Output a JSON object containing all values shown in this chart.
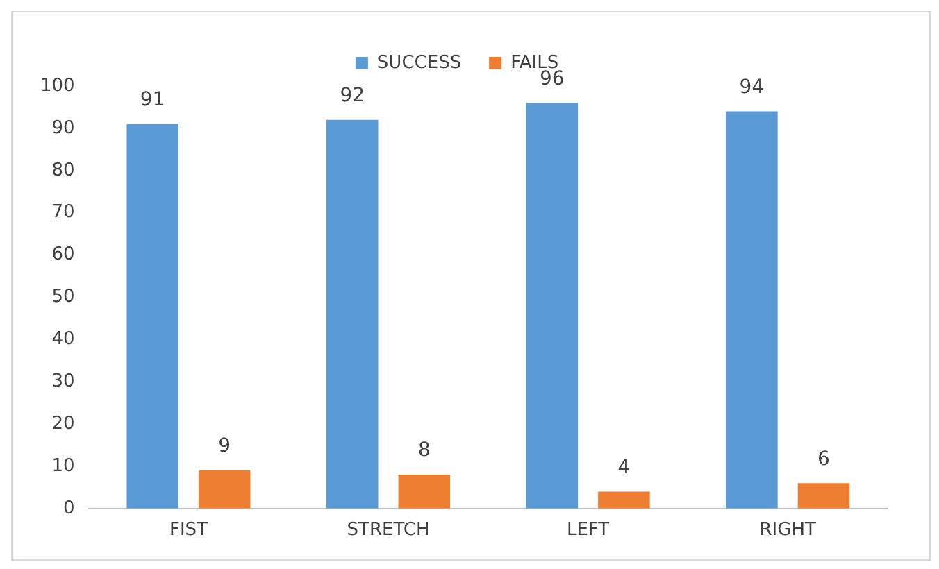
{
  "chart_data": {
    "type": "bar",
    "categories": [
      "FIST",
      "STRETCH",
      "LEFT",
      "RIGHT"
    ],
    "series": [
      {
        "name": "SUCCESS",
        "color": "#5b9bd5",
        "values": [
          91,
          92,
          96,
          94
        ]
      },
      {
        "name": "FAILS",
        "color": "#ed7d31",
        "values": [
          9,
          8,
          4,
          6
        ]
      }
    ],
    "ylim": [
      0,
      100
    ],
    "yticks": [
      0,
      10,
      20,
      30,
      40,
      50,
      60,
      70,
      80,
      90,
      100
    ],
    "grid": false,
    "legend": "top",
    "data_labels": true
  }
}
